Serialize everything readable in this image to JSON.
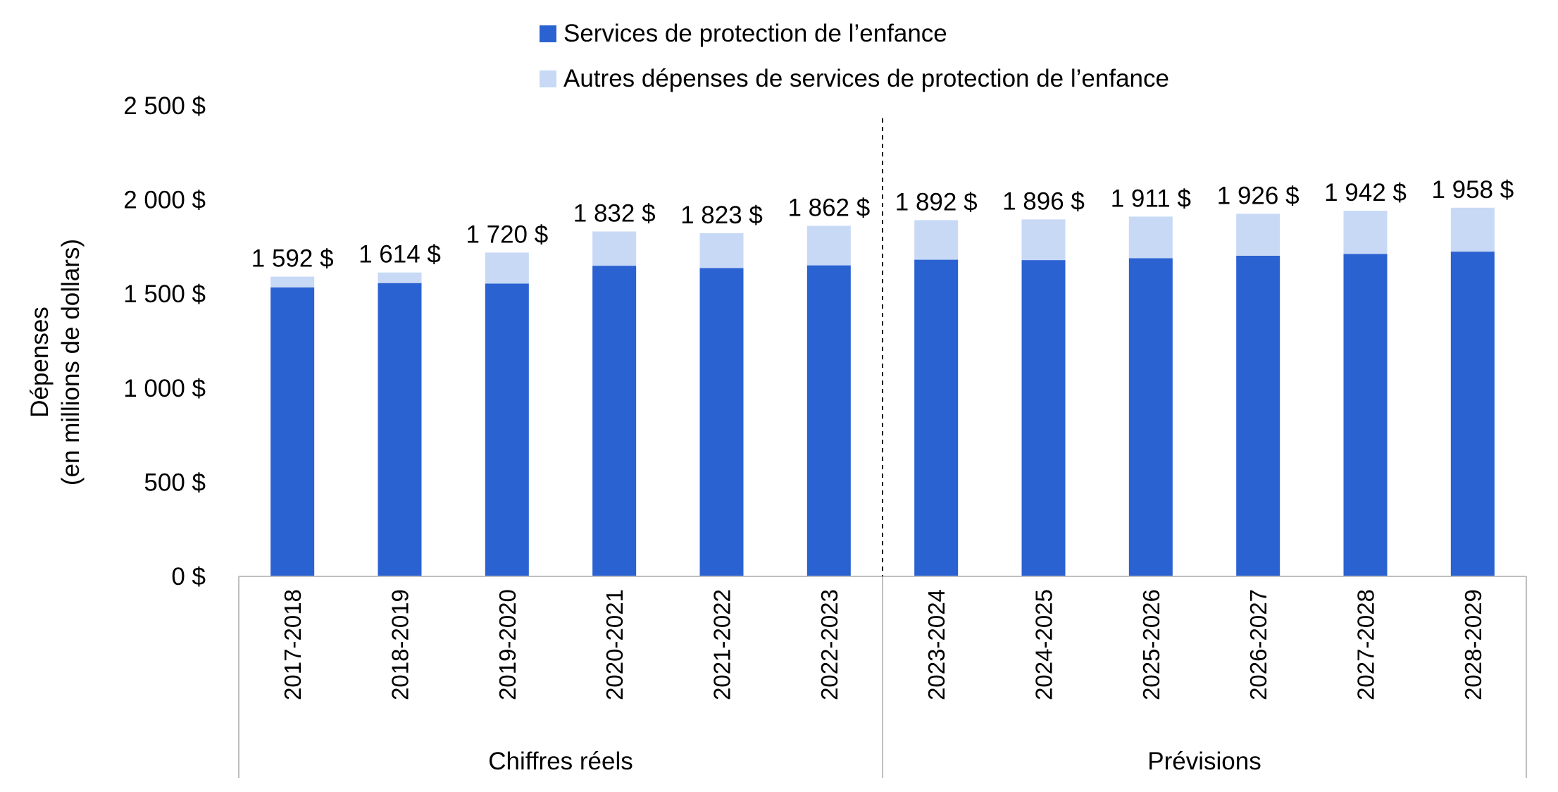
{
  "chart_data": {
    "type": "bar",
    "stacked": true,
    "categories": [
      "2017-2018",
      "2018-2019",
      "2019-2020",
      "2020-2021",
      "2021-2022",
      "2022-2023",
      "2023-2024",
      "2024-2025",
      "2025-2026",
      "2026-2027",
      "2027-2028",
      "2028-2029"
    ],
    "series": [
      {
        "name": "Services de protection de l’enfance",
        "color": "#2b62d2",
        "values": [
          1535,
          1558,
          1555,
          1650,
          1638,
          1652,
          1682,
          1680,
          1690,
          1703,
          1713,
          1725
        ]
      },
      {
        "name": "Autres dépenses de services de protection de l’enfance",
        "color": "#c8d9f6",
        "values": [
          57,
          56,
          165,
          182,
          185,
          210,
          210,
          216,
          221,
          223,
          229,
          233
        ]
      }
    ],
    "totals": [
      1592,
      1614,
      1720,
      1832,
      1823,
      1862,
      1892,
      1896,
      1911,
      1926,
      1942,
      1958
    ],
    "total_labels": [
      "1 592 $",
      "1 614 $",
      "1 720 $",
      "1 832 $",
      "1 823 $",
      "1 862 $",
      "1 892 $",
      "1 896 $",
      "1 911 $",
      "1 926 $",
      "1 942 $",
      "1 958 $"
    ],
    "ylabel_lines": [
      "Dépenses",
      "(en millions de dollars)"
    ],
    "ylim": [
      0,
      2500
    ],
    "y_ticks": [
      0,
      500,
      1000,
      1500,
      2000,
      2500
    ],
    "y_tick_labels": [
      "0 $",
      "500 $",
      "1 000 $",
      "1 500 $",
      "2 000 $",
      "2 500 $"
    ],
    "groups": [
      {
        "label": "Chiffres réels",
        "from": 0,
        "to": 5
      },
      {
        "label": "Prévisions",
        "from": 6,
        "to": 11
      }
    ],
    "divider_after_index": 5,
    "legend_position": "top-center",
    "grid": false
  }
}
